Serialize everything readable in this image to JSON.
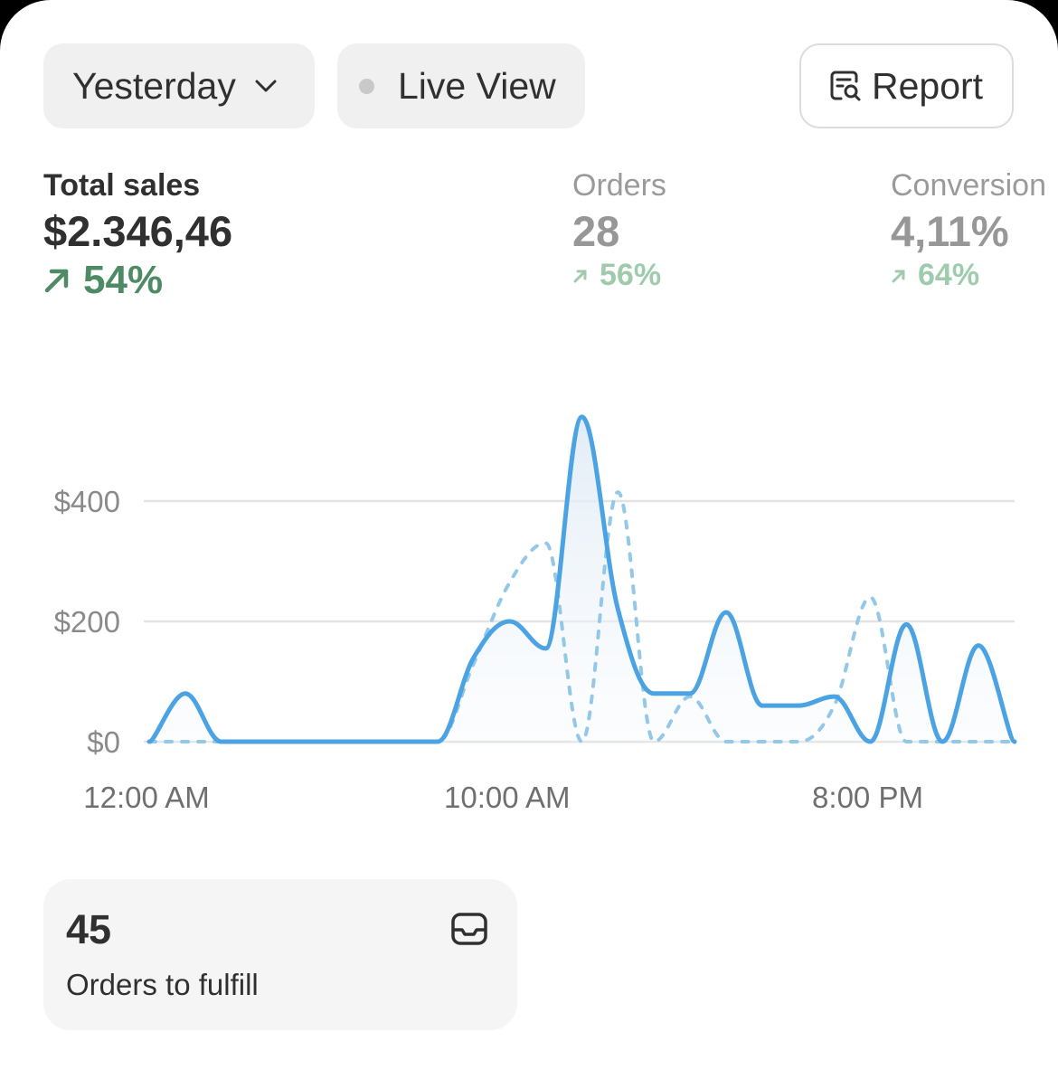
{
  "toolbar": {
    "date_range_label": "Yesterday",
    "live_view_label": "Live View",
    "report_label": "Report"
  },
  "metrics": {
    "total_sales": {
      "label": "Total sales",
      "value": "$2.346,46",
      "change": "54%"
    },
    "orders": {
      "label": "Orders",
      "value": "28",
      "change": "56%"
    },
    "conversion": {
      "label": "Conversion",
      "value": "4,11%",
      "change": "64%"
    }
  },
  "chart_data": {
    "type": "line",
    "title": "",
    "xlabel": "",
    "ylabel": "",
    "x_tick_labels": [
      "12:00 AM",
      "10:00 AM",
      "8:00 PM"
    ],
    "y_tick_labels": [
      "$0",
      "$200",
      "$400"
    ],
    "ylim": [
      0,
      560
    ],
    "x_unit": "hour of day",
    "grid": true,
    "series": [
      {
        "style": "solid",
        "color": "#4ca3e3",
        "x": [
          0,
          1,
          2,
          3,
          4,
          5,
          6,
          7,
          8,
          9,
          10,
          11,
          12,
          13,
          14,
          15,
          16,
          17,
          18,
          19,
          20,
          21,
          22,
          23
        ],
        "values": [
          0,
          80,
          0,
          0,
          0,
          0,
          0,
          0,
          0,
          140,
          200,
          155,
          540,
          220,
          80,
          80,
          215,
          60,
          60,
          75,
          0,
          195,
          0,
          160
        ]
      },
      {
        "style": "dashed",
        "color": "#94c8e8",
        "x": [
          0,
          1,
          2,
          3,
          4,
          5,
          6,
          7,
          8,
          9,
          10,
          11,
          12,
          13,
          14,
          15,
          16,
          17,
          18,
          19,
          20,
          21,
          22,
          23
        ],
        "values": [
          0,
          0,
          0,
          0,
          0,
          0,
          0,
          0,
          0,
          130,
          265,
          330,
          0,
          415,
          0,
          75,
          0,
          0,
          0,
          60,
          240,
          0,
          0,
          0
        ]
      }
    ]
  },
  "fulfill": {
    "count": "45",
    "label": "Orders to fulfill"
  }
}
